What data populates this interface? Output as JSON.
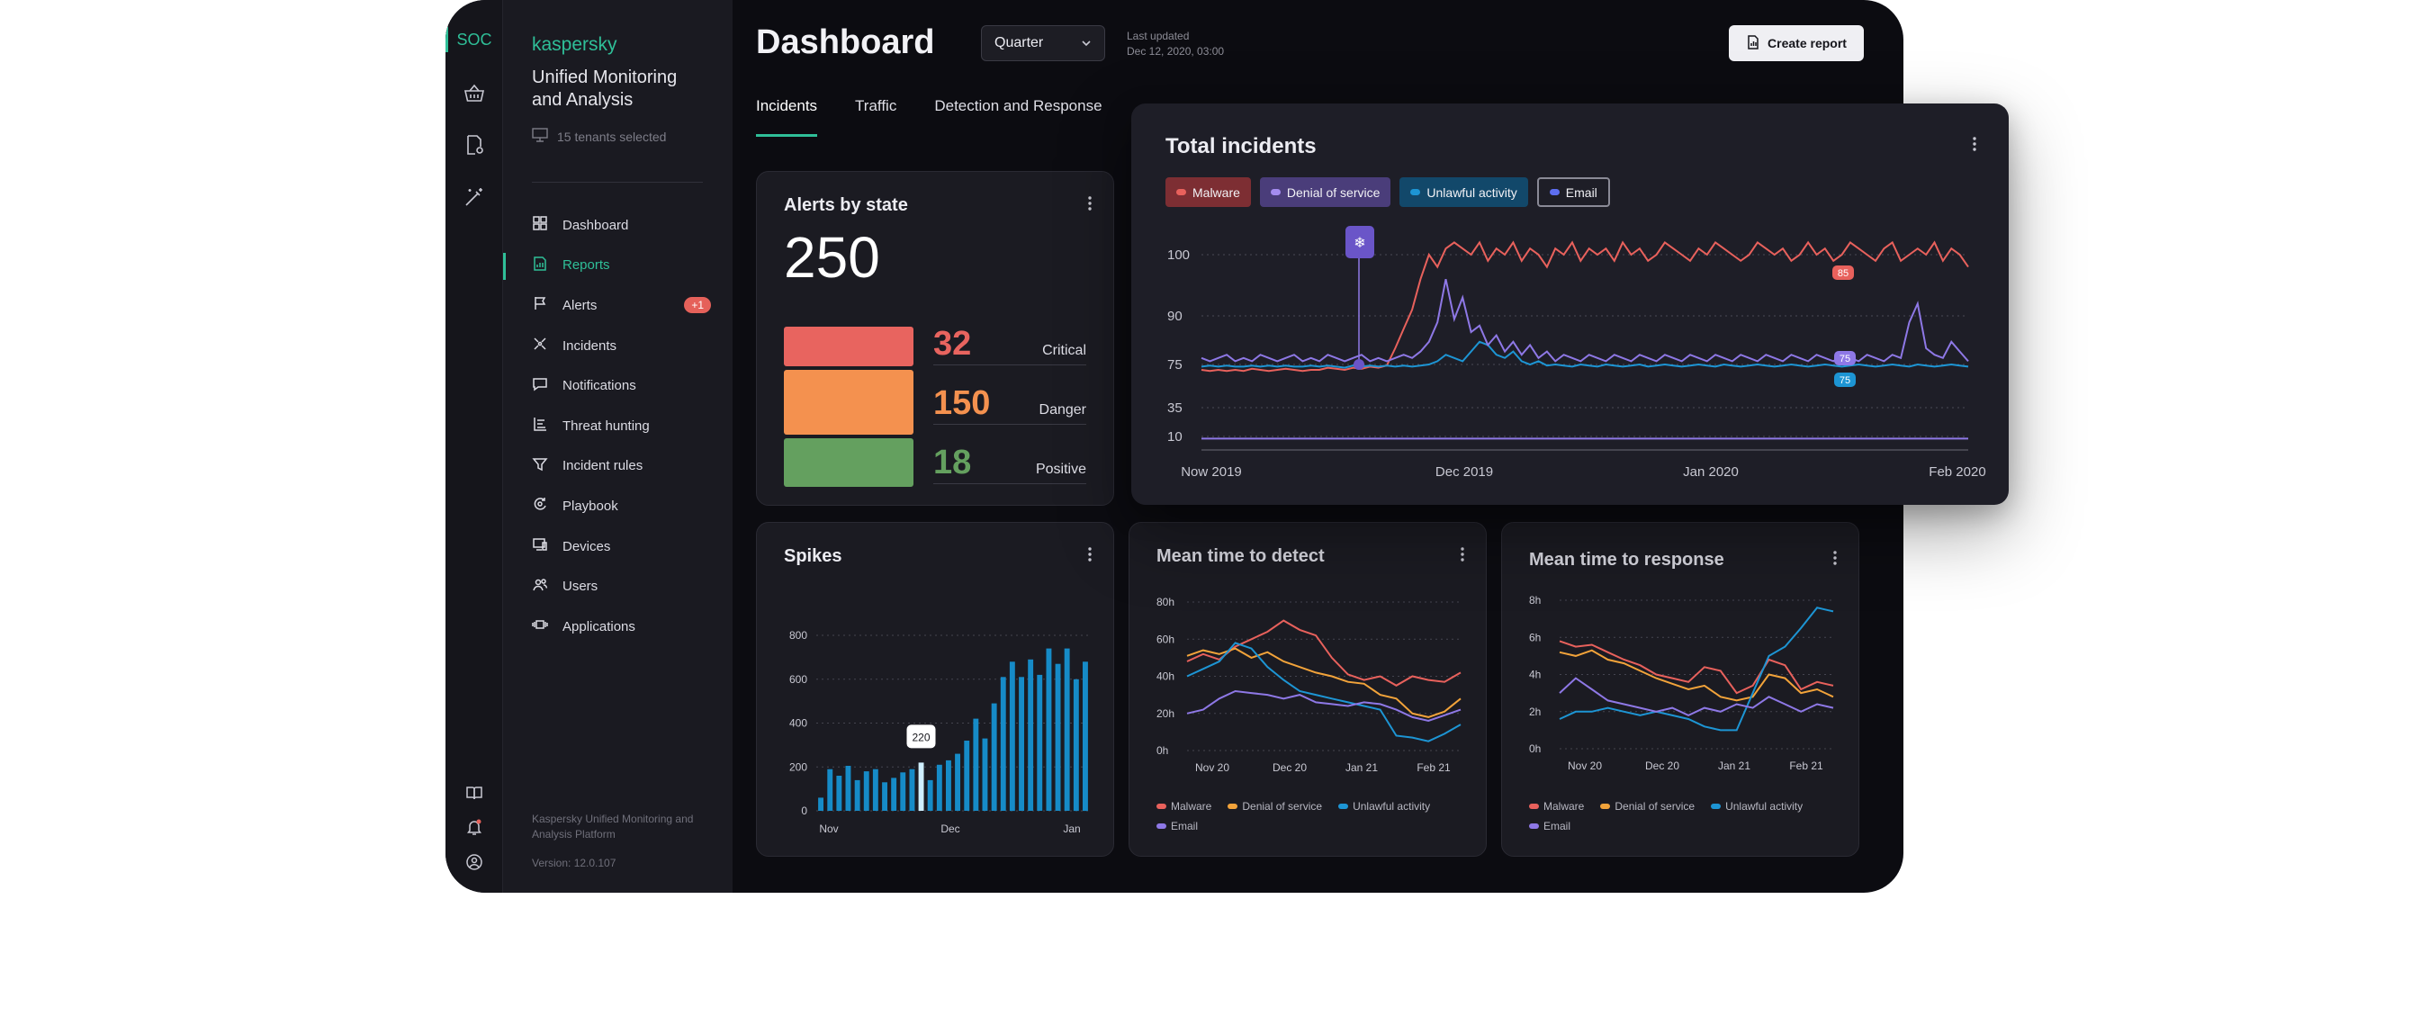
{
  "sidebar": {
    "rail_label": "SOC",
    "brand": "kaspersky",
    "app_name": "Unified Monitoring and Analysis",
    "tenants": "15 tenants selected",
    "items": [
      {
        "label": "Dashboard",
        "icon": "dashboard-icon"
      },
      {
        "label": "Reports",
        "icon": "reports-icon"
      },
      {
        "label": "Alerts",
        "icon": "flag-icon"
      },
      {
        "label": "Incidents",
        "icon": "incidents-icon"
      },
      {
        "label": "Notifications",
        "icon": "chat-icon"
      },
      {
        "label": "Threat hunting",
        "icon": "hunting-icon"
      },
      {
        "label": "Incident rules",
        "icon": "filter-icon"
      },
      {
        "label": "Playbook",
        "icon": "playbook-icon"
      },
      {
        "label": "Devices",
        "icon": "devices-icon"
      },
      {
        "label": "Users",
        "icon": "users-icon"
      },
      {
        "label": "Applications",
        "icon": "applications-icon"
      }
    ],
    "active_item": "Reports",
    "alerts_badge": "+1",
    "footer": "Kaspersky Unified Monitoring and Analysis Platform",
    "version": "Version: 12.0.107"
  },
  "header": {
    "title": "Dashboard",
    "period": "Quarter",
    "updated_label": "Last updated",
    "updated_value": "Dec 12, 2020, 03:00",
    "create_button": "Create report",
    "tabs": [
      "Incidents",
      "Traffic",
      "Detection and Response"
    ],
    "active_tab": "Incidents"
  },
  "colors": {
    "accent": "#2fbf98",
    "malware": "#e8615c",
    "denial_of_service": "#f2a33a",
    "unlawful_activity": "#1d95d4",
    "email": "#8e78e6",
    "critical": "#e8645f",
    "danger": "#f4914f",
    "positive": "#64a05f"
  },
  "alerts_card": {
    "title": "Alerts  by state",
    "total": "250",
    "rows": [
      {
        "value": "32",
        "label": "Critical"
      },
      {
        "value": "150",
        "label": "Danger"
      },
      {
        "value": "18",
        "label": "Positive"
      }
    ]
  },
  "total_incidents": {
    "title": "Total incidents",
    "chips": [
      "Malware",
      "Denial of service",
      "Unlawful activity",
      "Email"
    ],
    "marker_labels": {
      "malware": "85",
      "email": "75",
      "unlawful": "75"
    }
  },
  "spikes": {
    "title": "Spikes",
    "tooltip": "220"
  },
  "mttd": {
    "title": "Mean time to detect"
  },
  "mttr": {
    "title": "Mean time to response"
  },
  "legend": [
    "Malware",
    "Denial of service",
    "Unlawful activity",
    "Email"
  ],
  "chart_data": [
    {
      "type": "line",
      "title": "Total incidents",
      "x_ticks": [
        "Now 2019",
        "Dec 2019",
        "Jan 2020",
        "Feb 2020"
      ],
      "y_ticks": [
        10,
        35,
        75,
        90,
        100
      ],
      "grid": true,
      "series": [
        {
          "name": "Malware",
          "values": [
            70,
            69,
            70,
            69,
            70,
            69,
            71,
            70,
            69,
            70,
            71,
            70,
            69,
            70,
            70,
            72,
            71,
            70,
            72,
            71,
            73,
            72,
            74,
            80,
            86,
            91,
            96,
            100,
            98,
            101,
            102,
            101,
            100,
            102,
            99,
            101,
            100,
            102,
            99,
            101,
            100,
            98,
            101,
            100,
            102,
            99,
            101,
            100,
            101,
            99,
            102,
            100,
            101,
            99,
            100,
            102,
            101,
            100,
            99,
            101,
            100,
            102,
            101,
            100,
            99,
            100,
            102,
            101,
            100,
            101,
            99,
            100,
            102,
            100,
            101,
            99,
            100,
            102,
            101,
            100,
            99,
            101,
            102,
            99,
            100,
            101,
            100,
            102,
            99,
            101,
            100,
            98
          ]
        },
        {
          "name": "Denial of service",
          "values": [
            8,
            8,
            8,
            8,
            8,
            8,
            8,
            8,
            8,
            8,
            8,
            8,
            8,
            8,
            8,
            8,
            8,
            8,
            8,
            8,
            8,
            8,
            8,
            8,
            8,
            8,
            8,
            8,
            8,
            8,
            8,
            8,
            8,
            8,
            8,
            8,
            8,
            8,
            8,
            8,
            8,
            8,
            8,
            8,
            8,
            8,
            8,
            8,
            8,
            8,
            8,
            8,
            8,
            8,
            8,
            8,
            8,
            8,
            8,
            8,
            8,
            8,
            8,
            8,
            8,
            8,
            8,
            8,
            8,
            8,
            8,
            8,
            8,
            8,
            8,
            8,
            8,
            8,
            8,
            8,
            8,
            8,
            8,
            8,
            8,
            8,
            8,
            8,
            8,
            8,
            8,
            8
          ]
        },
        {
          "name": "Unlawful activity",
          "values": [
            73,
            74,
            73,
            74,
            73,
            73,
            74,
            73,
            74,
            73,
            74,
            73,
            73,
            74,
            73,
            74,
            73,
            72,
            74,
            73,
            74,
            73,
            74,
            73,
            74,
            73,
            74,
            75,
            76,
            78,
            77,
            76,
            79,
            82,
            81,
            78,
            77,
            79,
            76,
            75,
            76,
            74,
            75,
            74,
            73,
            75,
            74,
            73,
            75,
            74,
            73,
            74,
            75,
            73,
            74,
            75,
            74,
            73,
            74,
            75,
            74,
            73,
            75,
            74,
            73,
            74,
            75,
            74,
            73,
            74,
            75,
            74,
            73,
            74,
            75,
            74,
            73,
            74,
            75,
            74,
            73,
            74,
            75,
            74,
            73,
            75,
            74,
            73,
            74,
            75,
            74,
            73
          ]
        },
        {
          "name": "Email",
          "values": [
            77,
            76,
            77,
            78,
            76,
            77,
            76,
            78,
            77,
            76,
            77,
            78,
            76,
            77,
            76,
            78,
            77,
            76,
            77,
            78,
            76,
            77,
            76,
            77,
            78,
            77,
            79,
            82,
            88,
            96,
            89,
            93,
            85,
            87,
            81,
            84,
            79,
            82,
            78,
            81,
            77,
            79,
            76,
            78,
            77,
            76,
            78,
            77,
            76,
            78,
            77,
            76,
            78,
            77,
            76,
            78,
            77,
            76,
            78,
            77,
            76,
            78,
            77,
            76,
            78,
            77,
            76,
            78,
            77,
            76,
            78,
            77,
            76,
            78,
            77,
            76,
            78,
            77,
            76,
            78,
            77,
            76,
            78,
            77,
            88,
            92,
            80,
            78,
            77,
            82,
            79,
            76
          ]
        }
      ]
    },
    {
      "type": "bar",
      "title": "Spikes",
      "x_ticks": [
        "Nov",
        "Dec",
        "Jan"
      ],
      "y_ticks": [
        0,
        200,
        400,
        600,
        800
      ],
      "ylim": [
        0,
        800
      ],
      "values": [
        60,
        190,
        160,
        205,
        140,
        180,
        190,
        130,
        150,
        175,
        190,
        220,
        140,
        210,
        230,
        260,
        320,
        420,
        330,
        490,
        610,
        680,
        610,
        690,
        620,
        740,
        670,
        740,
        600,
        680
      ],
      "highlight_index": 11,
      "highlight_label": "220"
    },
    {
      "type": "line",
      "title": "Mean time to detect",
      "x_ticks": [
        "Nov 20",
        "Dec 20",
        "Jan 21",
        "Feb 21"
      ],
      "y_ticks": [
        "0h",
        "20h",
        "40h",
        "60h",
        "80h"
      ],
      "ylim": [
        0,
        80
      ],
      "series": [
        {
          "name": "Malware",
          "values": [
            48,
            52,
            49,
            56,
            60,
            64,
            70,
            65,
            62,
            50,
            41,
            38,
            40,
            35,
            40,
            38,
            37,
            42
          ]
        },
        {
          "name": "Denial of service",
          "values": [
            51,
            54,
            52,
            55,
            50,
            53,
            48,
            45,
            42,
            40,
            37,
            36,
            30,
            28,
            20,
            18,
            21,
            28
          ]
        },
        {
          "name": "Unlawful activity",
          "values": [
            40,
            44,
            48,
            58,
            55,
            45,
            38,
            32,
            30,
            28,
            26,
            24,
            22,
            8,
            7,
            5,
            9,
            14
          ]
        },
        {
          "name": "Email",
          "values": [
            20,
            22,
            28,
            32,
            31,
            30,
            28,
            30,
            26,
            25,
            24,
            26,
            25,
            22,
            18,
            16,
            19,
            22
          ]
        }
      ]
    },
    {
      "type": "line",
      "title": "Mean time to response",
      "x_ticks": [
        "Nov 20",
        "Dec 20",
        "Jan 21",
        "Feb 21"
      ],
      "y_ticks": [
        "0h",
        "2h",
        "4h",
        "6h",
        "8h"
      ],
      "ylim": [
        0,
        8
      ],
      "series": [
        {
          "name": "Malware",
          "values": [
            5.8,
            5.5,
            5.6,
            5.2,
            4.8,
            4.5,
            4.0,
            3.8,
            3.6,
            4.4,
            4.2,
            3.0,
            3.4,
            4.8,
            4.5,
            3.2,
            3.6,
            3.4
          ]
        },
        {
          "name": "Denial of service",
          "values": [
            5.2,
            5.0,
            5.3,
            4.8,
            4.6,
            4.2,
            3.8,
            3.5,
            3.2,
            3.4,
            2.8,
            2.6,
            2.8,
            4.0,
            3.8,
            3.0,
            3.2,
            2.8
          ]
        },
        {
          "name": "Unlawful activity",
          "values": [
            1.6,
            2.0,
            2.0,
            2.2,
            2.0,
            1.8,
            2.0,
            1.8,
            1.6,
            1.2,
            1.0,
            1.0,
            3.0,
            5.0,
            5.5,
            6.5,
            7.6,
            7.4
          ]
        },
        {
          "name": "Email",
          "values": [
            3.0,
            3.8,
            3.2,
            2.6,
            2.4,
            2.2,
            2.0,
            2.2,
            1.8,
            2.2,
            2.0,
            2.4,
            2.2,
            2.8,
            2.4,
            2.0,
            2.4,
            2.2
          ]
        }
      ]
    }
  ]
}
